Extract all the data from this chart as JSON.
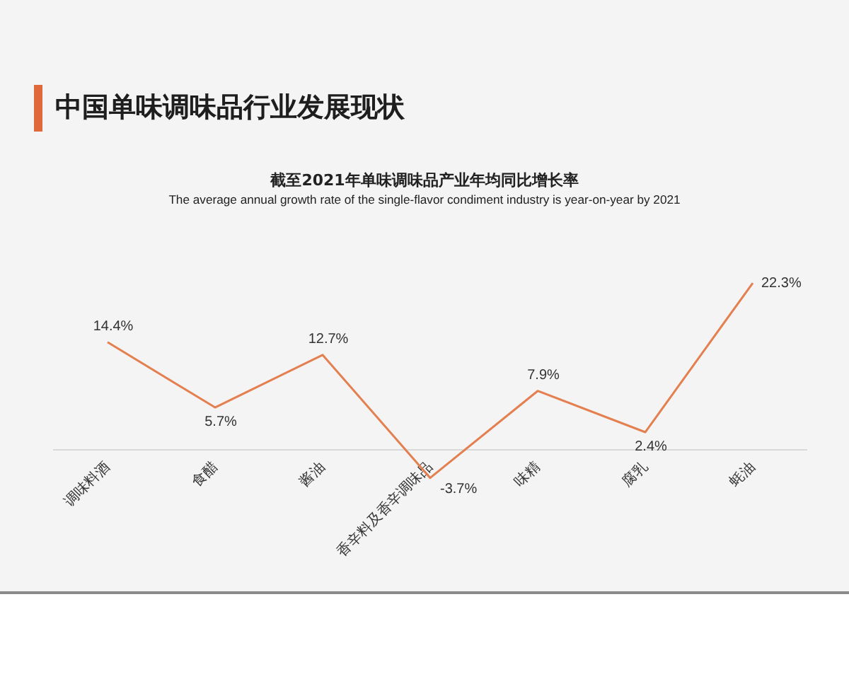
{
  "chart_data": {
    "type": "line",
    "title": "中国单味调味品行业发展现状",
    "subtitle": "截至2021年单味调味品产业年均同比增长率",
    "annotations": [
      "The average annual growth rate of the single-flavor condiment industry is year-on-year by 2021"
    ],
    "categories": [
      "调味料酒",
      "食醋",
      "酱油",
      "香辛料及香辛调味品",
      "味精",
      "腐乳",
      "蚝油"
    ],
    "values": [
      14.4,
      5.7,
      12.7,
      -3.7,
      7.9,
      2.4,
      22.3
    ],
    "color": "#e47f50",
    "value_labels": [
      "14.4%",
      "5.7%",
      "12.7%",
      "-3.7%",
      "7.9%",
      "2.4%",
      "22.3%"
    ],
    "tick_labels": "x",
    "marker": "none",
    "grid": false,
    "legend": false
  }
}
